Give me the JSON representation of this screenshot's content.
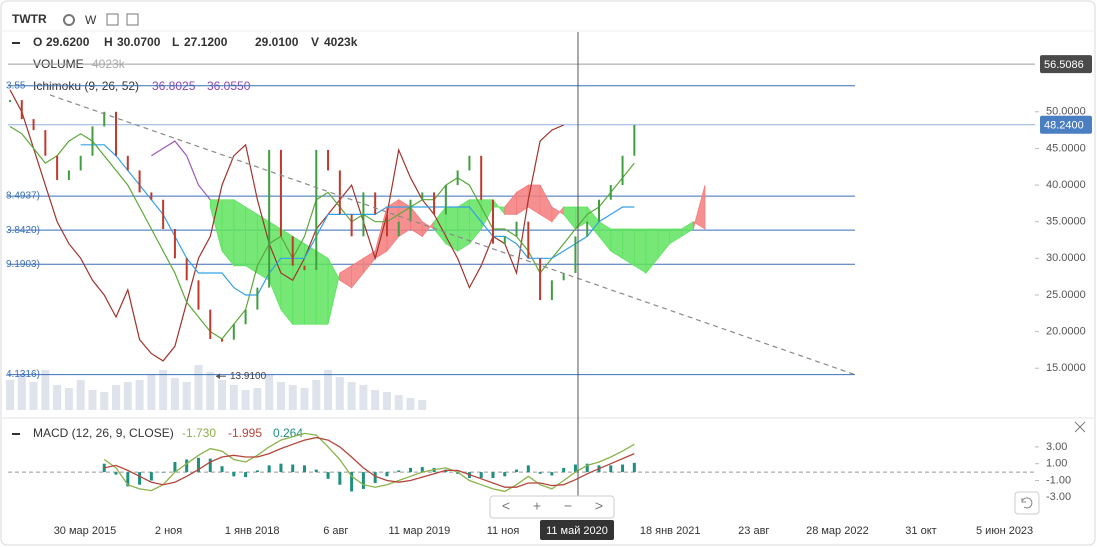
{
  "toolbar": {
    "symbol": "TWTR",
    "interval": "W"
  },
  "legend": {
    "ohlcv": [
      [
        "O",
        "29.6200"
      ],
      [
        "H",
        "30.0700"
      ],
      [
        "L",
        "27.1200"
      ],
      [
        "",
        "29.0100"
      ],
      [
        "V",
        "4023k"
      ]
    ],
    "volume": [
      "VOLUME",
      "4023k"
    ],
    "ichimoku": [
      "Ichimoku (9, 26, 52)",
      "36.8025",
      "36.0550"
    ],
    "macd": [
      "MACD (12, 26, 9, CLOSE)",
      "-1.730",
      "-1.995",
      "0.264"
    ]
  },
  "crosshair_label": "11 май 2020",
  "nav": [
    "<",
    "+",
    "−",
    ">"
  ],
  "chart_data": [
    {
      "type": "line",
      "ylim": [
        9.3,
        59.8
      ],
      "yticks": [
        {
          "value": 15,
          "label": "15.0000"
        },
        {
          "value": 20,
          "label": "20.0000"
        },
        {
          "value": 25,
          "label": "25.0000"
        },
        {
          "value": 30,
          "label": "30.0000"
        },
        {
          "value": 35,
          "label": "35.0000"
        },
        {
          "value": 40,
          "label": "40.0000"
        },
        {
          "value": 45,
          "label": "45.0000"
        },
        {
          "value": 50,
          "label": "50.0000"
        }
      ],
      "price": {
        "up_color": "#3f9f3f",
        "down_color": "#c0392b",
        "values": [
          51.6,
          49,
          47.5,
          44,
          40.7,
          42,
          44,
          48,
          50,
          44,
          42,
          39,
          38,
          34,
          30,
          27,
          23,
          19,
          18.9,
          21,
          23,
          26,
          44.8,
          33,
          29,
          28.4,
          44.8,
          42,
          36,
          33,
          39,
          36,
          33,
          35,
          38,
          39,
          36,
          40,
          42,
          44,
          38,
          32,
          33,
          35,
          30,
          24.3,
          27,
          28,
          33,
          35,
          38,
          40,
          44,
          48.2,
          null,
          null,
          null,
          null,
          null,
          null
        ]
      },
      "series": [
        {
          "color": "#a0342c",
          "values": [
            53,
            50,
            45,
            40,
            35,
            32,
            30,
            27,
            25,
            22,
            25.7,
            18.9,
            17,
            16,
            18,
            24,
            30,
            33,
            40,
            44,
            45.5,
            38,
            32,
            28,
            27,
            30,
            34,
            36,
            38,
            40,
            35,
            30,
            36,
            44.8,
            41,
            38,
            36,
            33,
            30,
            26,
            29,
            33,
            32,
            28,
            38,
            46,
            47.5,
            48.2,
            null,
            null,
            null,
            null,
            null,
            null,
            null,
            null,
            null,
            null,
            null,
            null
          ]
        },
        {
          "color": "#5aa83a",
          "values": [
            48,
            47,
            45,
            43,
            44,
            46,
            47,
            46,
            44,
            42,
            40,
            37,
            34,
            31,
            28,
            24,
            22,
            20,
            19,
            21,
            23,
            29,
            32,
            33,
            30,
            33,
            38,
            39,
            37,
            35,
            36,
            35,
            35,
            36,
            37,
            38,
            38,
            40,
            41,
            40,
            37,
            34,
            34,
            33,
            31,
            28,
            30,
            32,
            34,
            36,
            37,
            39,
            41,
            43,
            null,
            null,
            null,
            null,
            null,
            null
          ]
        },
        {
          "color": "#35a0e6",
          "values": [
            null,
            null,
            null,
            null,
            null,
            null,
            45.5,
            45.5,
            45.5,
            44,
            42,
            40,
            38,
            36,
            33,
            30,
            28,
            28,
            28,
            26,
            25,
            25,
            28,
            30,
            30,
            30,
            33,
            36,
            36,
            36,
            36,
            36,
            37,
            37,
            37,
            37,
            37,
            37,
            37,
            37,
            35,
            33,
            33,
            32,
            30,
            30,
            30,
            31,
            32,
            33,
            35,
            36,
            37,
            37,
            null,
            null,
            null,
            null,
            null,
            null
          ]
        },
        {
          "color": "#9b59b6",
          "values": [
            null,
            null,
            null,
            null,
            null,
            null,
            null,
            null,
            null,
            null,
            null,
            null,
            44,
            45,
            46,
            44,
            40,
            38,
            null,
            null,
            null,
            null,
            null,
            null,
            null,
            null,
            null,
            null,
            null,
            null,
            null,
            null,
            null,
            null,
            null,
            null,
            null,
            null,
            null,
            null,
            null,
            null,
            null,
            null,
            null,
            null,
            null,
            null,
            null,
            null,
            null,
            null,
            null,
            null,
            null,
            null,
            null,
            null,
            null,
            null
          ]
        }
      ],
      "cloud": {
        "up_color": "#5fe35f",
        "down_color": "#f47c7c",
        "span_a": [
          null,
          null,
          null,
          null,
          null,
          null,
          null,
          null,
          null,
          null,
          null,
          null,
          null,
          null,
          null,
          null,
          null,
          38,
          38,
          38,
          37,
          36,
          35,
          34,
          33,
          32,
          31,
          30,
          27,
          26,
          28,
          30,
          31,
          33,
          34,
          33,
          35,
          37,
          37,
          38,
          38,
          38,
          36,
          36,
          37,
          36,
          35,
          37,
          37,
          37,
          35,
          34,
          34,
          34,
          34,
          34,
          34,
          34,
          35,
          34
        ],
        "span_b": [
          null,
          null,
          null,
          null,
          null,
          null,
          null,
          null,
          null,
          null,
          null,
          null,
          null,
          null,
          null,
          null,
          null,
          37,
          31,
          29,
          29,
          28,
          27,
          23,
          21,
          21,
          21,
          21,
          28,
          29,
          30,
          31,
          37,
          38,
          37,
          35,
          34,
          32,
          31,
          32,
          34,
          37,
          37,
          39,
          40,
          40,
          37,
          36,
          34,
          35,
          33,
          31,
          30,
          29,
          28,
          30,
          32,
          33,
          34,
          40
        ]
      },
      "volume": {
        "color": "#dfe4ec",
        "values": [
          30,
          35,
          28,
          40,
          25,
          22,
          30,
          20,
          18,
          25,
          28,
          30,
          35,
          40,
          32,
          28,
          45,
          38,
          30,
          25,
          20,
          22,
          35,
          28,
          25,
          22,
          30,
          40,
          33,
          28,
          25,
          20,
          18,
          15,
          12,
          10,
          null,
          null,
          null,
          null,
          null,
          null,
          null,
          null,
          null,
          null,
          null,
          null,
          null,
          null,
          null,
          null,
          null,
          null,
          null,
          null,
          null,
          null,
          null,
          null
        ]
      },
      "hlines": [
        {
          "value": 56.5086,
          "label": "56.5086",
          "color": "#9e9e9e",
          "label_side": "right",
          "badge_color": "#4a4a4a"
        },
        {
          "value": 53.55,
          "label": "3.55",
          "color": "#3b6fb6",
          "label_side": "left"
        },
        {
          "value": 48.24,
          "label": "48.2400",
          "color": "#8fb3dd",
          "label_side": "right",
          "badge_color": "#4a7fc1"
        },
        {
          "value": 38.4937,
          "label": "8.4937)",
          "color": "#3b6fb6",
          "label_side": "left"
        },
        {
          "value": 33.842,
          "label": "3.8420)",
          "color": "#3b6fb6",
          "label_side": "left"
        },
        {
          "value": 29.1903,
          "label": "9.1903)",
          "color": "#3b6fb6",
          "label_side": "left"
        },
        {
          "value": 14.1316,
          "label": "4.1316)",
          "color": "#3b6fb6",
          "label_side": "left"
        }
      ],
      "trendline": {
        "color": "#8a8a8a",
        "values": [
          52.3,
          14.13
        ]
      },
      "annotation": {
        "value": 13.91,
        "label": "13.9100"
      }
    },
    {
      "type": "line",
      "ylim": [
        -5.1,
        5.6
      ],
      "yticks": [
        {
          "value": 3,
          "label": "3.00"
        },
        {
          "value": 1,
          "label": "1.00"
        },
        {
          "value": -1,
          "label": "-1.00"
        },
        {
          "value": -3,
          "label": "-3.00"
        }
      ],
      "zero_line": true,
      "series": [
        {
          "color": "#8bb34a",
          "values": [
            null,
            null,
            null,
            null,
            null,
            null,
            null,
            null,
            1.5,
            0.5,
            -1.5,
            -2,
            -2.2,
            -1.5,
            0,
            1,
            2,
            2.8,
            2.5,
            1.5,
            1.2,
            2,
            3,
            3.8,
            4.2,
            4.6,
            4.4,
            3,
            1.5,
            -0.5,
            -1.5,
            -1.8,
            -1.5,
            -1,
            -0.5,
            0,
            0.3,
            0.5,
            0,
            -1,
            -1.5,
            -2,
            -2.3,
            -1.5,
            -0.5,
            -1.5,
            -2,
            -1,
            0,
            0.8,
            1.2,
            1.8,
            2.5,
            3.3,
            null,
            null,
            null,
            null,
            null,
            null
          ]
        },
        {
          "color": "#b5463c",
          "values": [
            null,
            null,
            null,
            null,
            null,
            null,
            null,
            null,
            0.5,
            0.8,
            0.2,
            -0.5,
            -1.2,
            -1.5,
            -1.2,
            -0.5,
            0.3,
            1.2,
            1.8,
            2,
            1.8,
            1.8,
            2.2,
            2.8,
            3.3,
            3.8,
            4.1,
            3.8,
            3,
            1.8,
            0.5,
            -0.5,
            -1,
            -1.2,
            -1,
            -0.6,
            -0.2,
            0.2,
            0.2,
            -0.3,
            -0.8,
            -1.3,
            -1.8,
            -1.8,
            -1.3,
            -1.3,
            -1.6,
            -1.5,
            -0.9,
            -0.2,
            0.4,
            1,
            1.6,
            2.2,
            null,
            null,
            null,
            null,
            null,
            null
          ]
        }
      ],
      "histogram": {
        "color": "#1f8f80",
        "values": [
          null,
          null,
          null,
          null,
          null,
          null,
          null,
          null,
          1,
          -0.3,
          -1.7,
          -1.5,
          -1,
          0,
          1.2,
          1.5,
          1.7,
          1.6,
          0.7,
          -0.5,
          -0.6,
          0.2,
          0.8,
          1,
          0.9,
          0.8,
          0.3,
          -0.8,
          -1.5,
          -2.3,
          -2,
          -1.3,
          -0.5,
          0.2,
          0.5,
          0.6,
          0.5,
          0.3,
          -0.2,
          -0.7,
          -0.7,
          -0.7,
          -0.5,
          0.3,
          0.8,
          -0.2,
          -0.4,
          0.5,
          0.9,
          1,
          0.8,
          0.8,
          0.9,
          1.1,
          null,
          null,
          null,
          null,
          null,
          null
        ]
      },
      "x_axis_labels": [
        "30 мар 2015",
        "2 ноя",
        "1 янв 2018",
        "6 авг",
        "11 мар 2019",
        "11 ноя",
        null,
        "18 янв 2021",
        "23 авг",
        "28 мар 2022",
        "31 окт",
        "5 июн 2023"
      ]
    }
  ]
}
